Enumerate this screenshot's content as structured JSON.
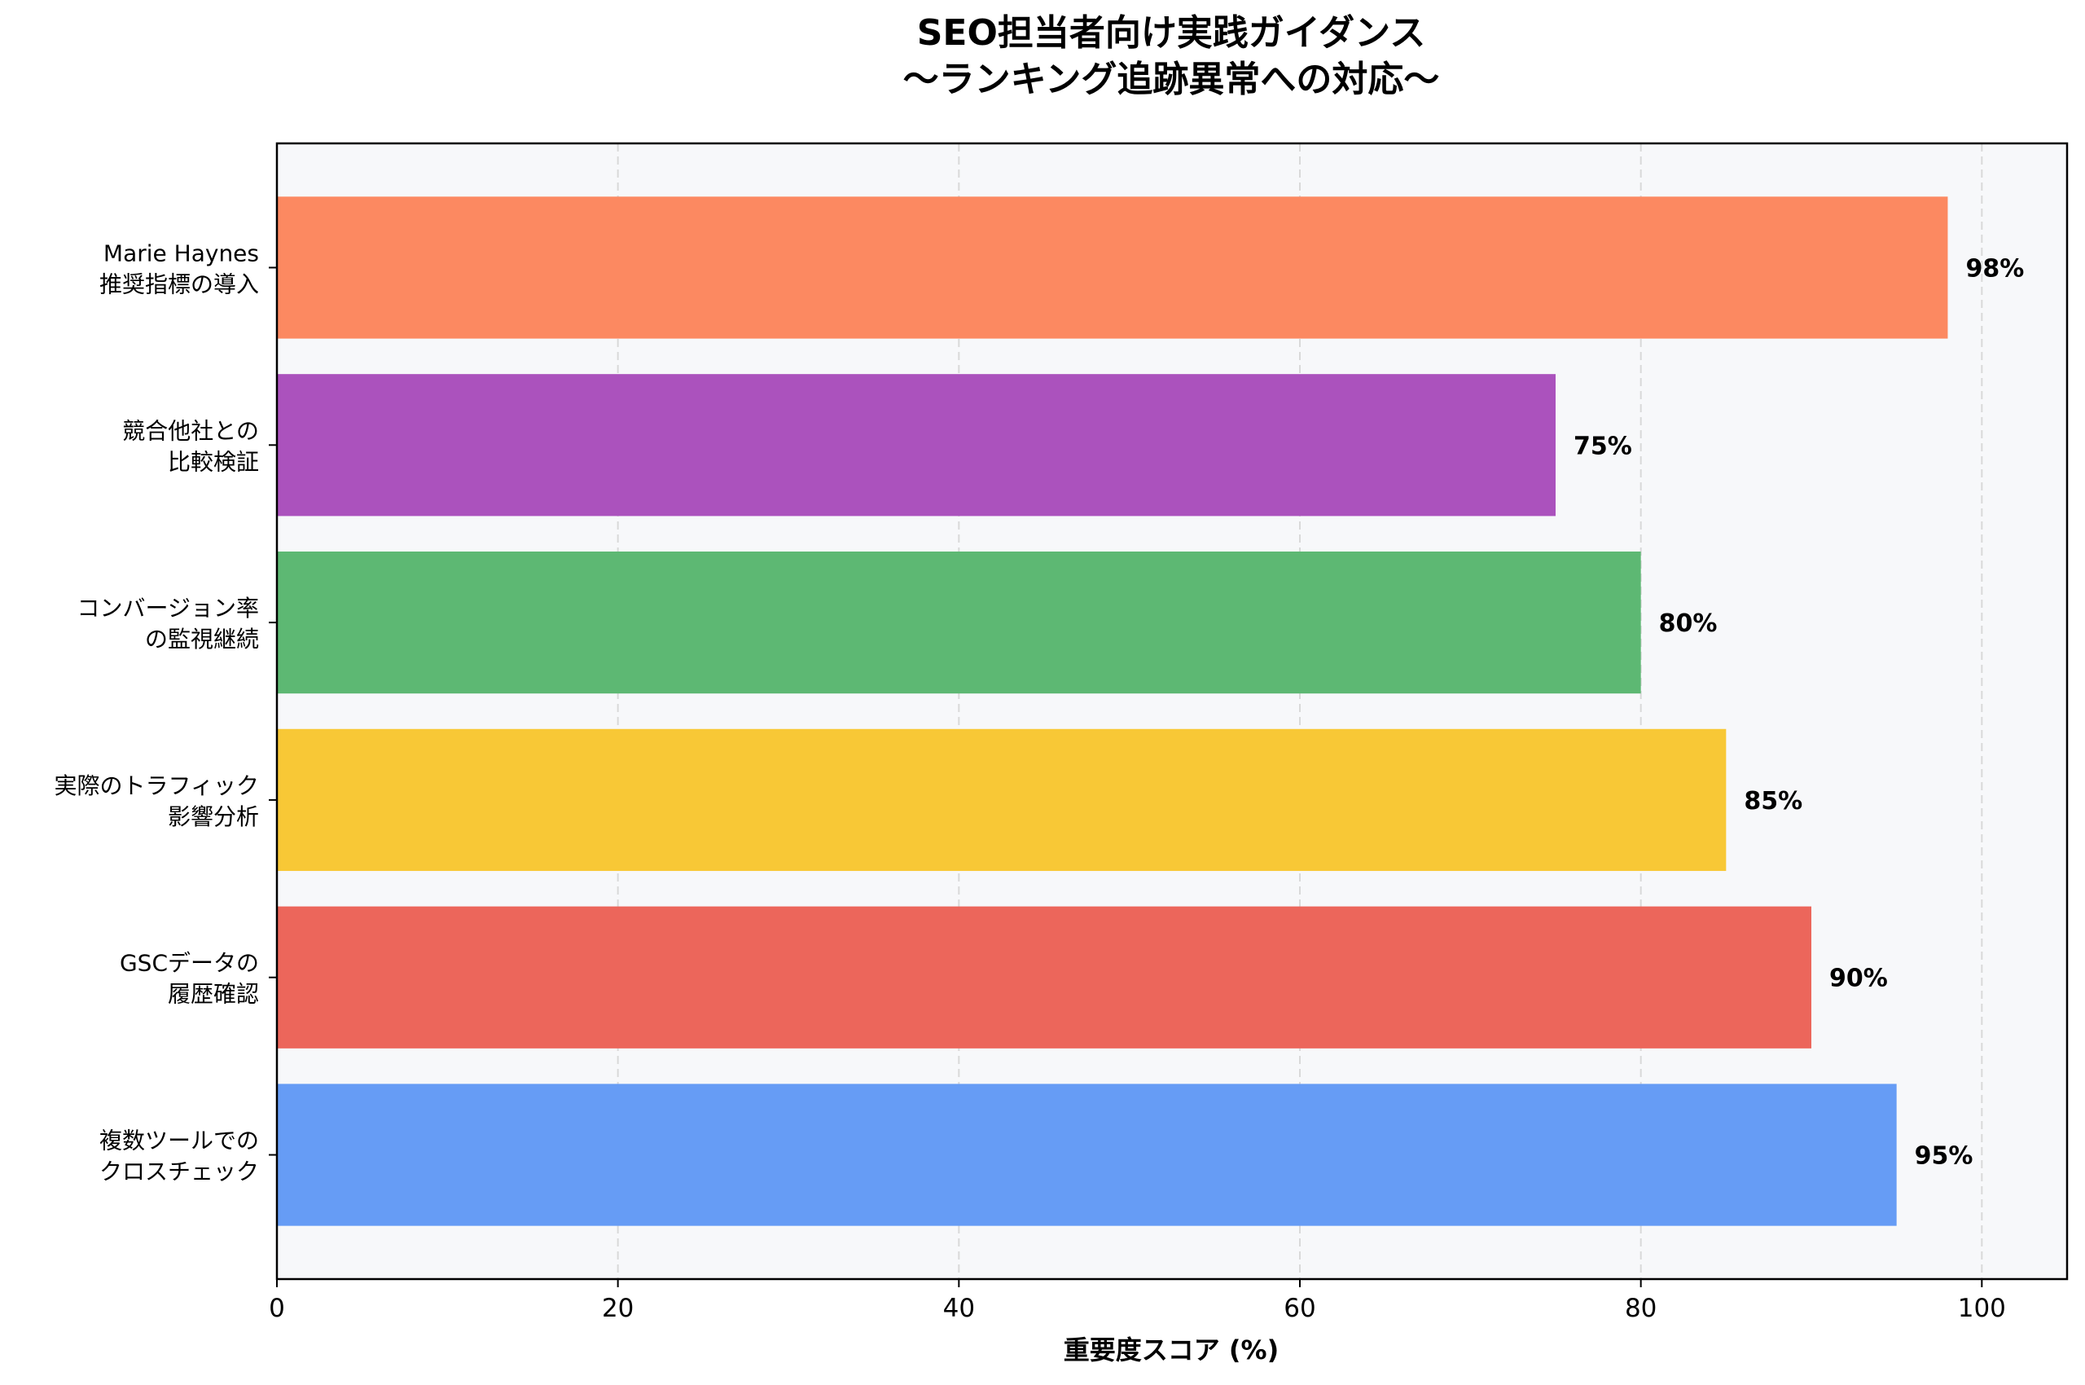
{
  "chart_data": {
    "type": "bar",
    "orientation": "horizontal",
    "title": [
      "SEO担当者向け実践ガイダンス",
      "〜ランキング追跡異常への対応〜"
    ],
    "xlabel": "重要度スコア (%)",
    "ylabel": "",
    "xlim": [
      0,
      105
    ],
    "xticks": [
      "0",
      "20",
      "40",
      "60",
      "80",
      "100"
    ],
    "xtick_values": [
      0,
      20,
      40,
      60,
      80,
      100
    ],
    "grid": "x, dashed",
    "categories": [
      [
        "Marie Haynes",
        "推奨指標の導入"
      ],
      [
        "競合他社との",
        "比較検証"
      ],
      [
        "コンバージョン率",
        "の監視継続"
      ],
      [
        "実際のトラフィック",
        "影響分析"
      ],
      [
        "GSCデータの",
        "履歴確認"
      ],
      [
        "複数ツールでの",
        "クロスチェック"
      ]
    ],
    "values": [
      98,
      75,
      80,
      85,
      90,
      95
    ],
    "value_labels": [
      "98%",
      "75%",
      "80%",
      "85%",
      "90%",
      "95%"
    ],
    "colors": [
      "#FC8961",
      "#AB52BD",
      "#5DB873",
      "#F8C836",
      "#EC665B",
      "#669CF5"
    ],
    "background": "#F7F8FA"
  }
}
